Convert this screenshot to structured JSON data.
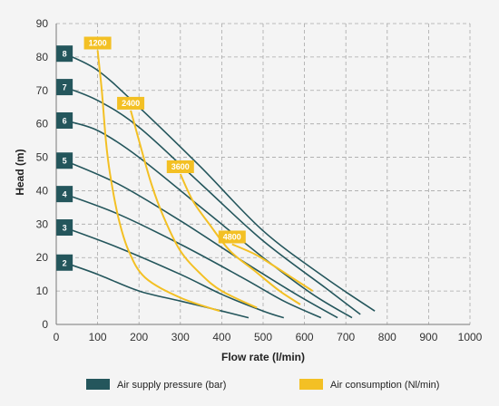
{
  "chart_data": {
    "type": "line",
    "xlabel": "Flow rate (l/min)",
    "ylabel": "Head (m)",
    "xlim": [
      0,
      1000
    ],
    "ylim": [
      0,
      90
    ],
    "x_ticks": [
      "0",
      "100",
      "200",
      "300",
      "400",
      "500",
      "600",
      "700",
      "800",
      "900",
      "1000"
    ],
    "y_ticks": [
      "0",
      "10",
      "20",
      "30",
      "40",
      "50",
      "60",
      "70",
      "80",
      "90"
    ],
    "grid": true,
    "colors": {
      "pressure": "#24565c",
      "consumption": "#f3c024"
    },
    "legend": {
      "placement": "bottom",
      "items": [
        {
          "label": "Air supply pressure (bar)",
          "color": "#24565c"
        },
        {
          "label": "Air consumption (Nl/min)",
          "color": "#f3c024"
        }
      ]
    },
    "pressure_series": [
      {
        "name": "2",
        "points": [
          [
            20,
            18.5
          ],
          [
            100,
            15
          ],
          [
            200,
            10
          ],
          [
            300,
            7
          ],
          [
            400,
            4
          ],
          [
            465,
            2
          ]
        ]
      },
      {
        "name": "3",
        "points": [
          [
            20,
            29
          ],
          [
            150,
            23
          ],
          [
            300,
            15
          ],
          [
            400,
            9
          ],
          [
            500,
            4
          ],
          [
            550,
            2
          ]
        ]
      },
      {
        "name": "4",
        "points": [
          [
            20,
            39
          ],
          [
            150,
            33
          ],
          [
            300,
            24
          ],
          [
            450,
            14
          ],
          [
            550,
            7
          ],
          [
            640,
            2
          ]
        ]
      },
      {
        "name": "5",
        "points": [
          [
            20,
            49
          ],
          [
            150,
            42
          ],
          [
            300,
            31
          ],
          [
            450,
            19
          ],
          [
            580,
            9
          ],
          [
            680,
            2
          ]
        ]
      },
      {
        "name": "6",
        "points": [
          [
            20,
            61
          ],
          [
            100,
            58
          ],
          [
            200,
            50
          ],
          [
            350,
            35
          ],
          [
            500,
            20
          ],
          [
            620,
            9
          ],
          [
            715,
            2
          ]
        ]
      },
      {
        "name": "7",
        "points": [
          [
            20,
            71
          ],
          [
            100,
            67
          ],
          [
            200,
            59
          ],
          [
            350,
            42
          ],
          [
            500,
            25
          ],
          [
            650,
            11
          ],
          [
            735,
            3
          ]
        ]
      },
      {
        "name": "8",
        "points": [
          [
            20,
            81
          ],
          [
            100,
            76
          ],
          [
            200,
            65
          ],
          [
            350,
            47
          ],
          [
            500,
            28
          ],
          [
            650,
            14
          ],
          [
            770,
            4
          ]
        ]
      }
    ],
    "consumption_series": [
      {
        "name": "1200",
        "points": [
          [
            100,
            82
          ],
          [
            110,
            70
          ],
          [
            120,
            55
          ],
          [
            130,
            45
          ],
          [
            150,
            32
          ],
          [
            175,
            22
          ],
          [
            215,
            14
          ],
          [
            300,
            8
          ],
          [
            395,
            4
          ]
        ]
      },
      {
        "name": "2400",
        "points": [
          [
            180,
            64
          ],
          [
            200,
            55
          ],
          [
            230,
            42
          ],
          [
            260,
            32
          ],
          [
            300,
            22
          ],
          [
            350,
            15
          ],
          [
            400,
            10
          ],
          [
            485,
            5
          ]
        ]
      },
      {
        "name": "3600",
        "points": [
          [
            300,
            45
          ],
          [
            330,
            37
          ],
          [
            370,
            30
          ],
          [
            420,
            22
          ],
          [
            480,
            16
          ],
          [
            540,
            10
          ],
          [
            590,
            6
          ]
        ]
      },
      {
        "name": "4800",
        "points": [
          [
            425,
            24
          ],
          [
            480,
            21
          ],
          [
            520,
            18
          ],
          [
            570,
            14
          ],
          [
            620,
            10
          ]
        ]
      }
    ]
  }
}
